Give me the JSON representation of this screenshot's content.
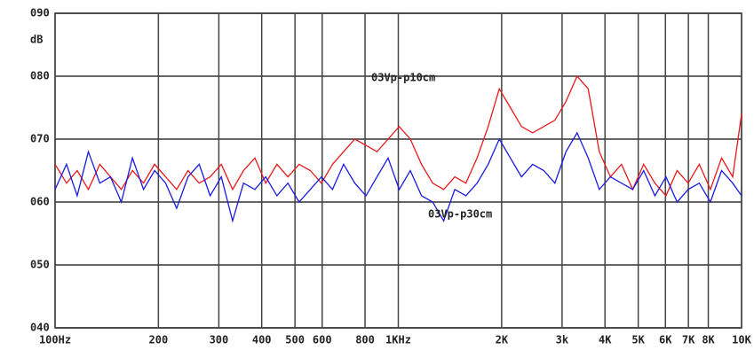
{
  "chart_data": {
    "type": "line",
    "y_label": "dB",
    "xscale": "log",
    "xlim": [
      100,
      10000
    ],
    "ylim": [
      40,
      90
    ],
    "grid": true,
    "xticks": [
      {
        "value": 100,
        "label": "100Hz"
      },
      200,
      300,
      400,
      500,
      600,
      800,
      {
        "value": 1000,
        "label": "1KHz"
      },
      {
        "value": 2000,
        "label": "2K"
      },
      {
        "value": 3000,
        "label": "3k"
      },
      {
        "value": 4000,
        "label": "4K"
      },
      {
        "value": 5000,
        "label": "5K"
      },
      {
        "value": 6000,
        "label": "6K"
      },
      {
        "value": 7000,
        "label": "7K"
      },
      {
        "value": 8000,
        "label": "8K"
      },
      {
        "value": 10000,
        "label": "10K"
      }
    ],
    "yticks": [
      {
        "value": 40,
        "label": "040"
      },
      {
        "value": 50,
        "label": "050"
      },
      {
        "value": 60,
        "label": "060"
      },
      {
        "value": 70,
        "label": "070"
      },
      {
        "value": 80,
        "label": "080"
      },
      {
        "value": 90,
        "label": "090"
      }
    ],
    "x": [
      100,
      108,
      116,
      125,
      135,
      145,
      156,
      168,
      181,
      195,
      210,
      226,
      244,
      263,
      283,
      305,
      329,
      354,
      382,
      411,
      443,
      477,
      514,
      554,
      597,
      643,
      693,
      747,
      805,
      867,
      934,
      1006,
      1084,
      1168,
      1259,
      1356,
      1461,
      1574,
      1696,
      1827,
      1969,
      2121,
      2285,
      2462,
      2653,
      2858,
      3079,
      3317,
      3574,
      3851,
      4149,
      4470,
      4816,
      5188,
      5590,
      6023,
      6489,
      6991,
      7532,
      8115,
      8743,
      9420,
      10000
    ],
    "series": [
      {
        "name": "03Vp-p10cm",
        "color": "#e8191b",
        "values": [
          66,
          63,
          65,
          62,
          66,
          64,
          62,
          65,
          63,
          66,
          64,
          62,
          65,
          63,
          64,
          66,
          62,
          65,
          67,
          63,
          66,
          64,
          66,
          65,
          63,
          66,
          68,
          70,
          69,
          68,
          70,
          72,
          70,
          66,
          63,
          62,
          64,
          63,
          67,
          72,
          78,
          75,
          72,
          71,
          72,
          73,
          76,
          80,
          78,
          68,
          64,
          66,
          62,
          66,
          63,
          61,
          65,
          63,
          66,
          62,
          67,
          64,
          74
        ]
      },
      {
        "name": "03Vp-p30cm",
        "color": "#1a1ae0",
        "values": [
          62,
          66,
          61,
          68,
          63,
          64,
          60,
          67,
          62,
          65,
          63,
          59,
          64,
          66,
          61,
          64,
          57,
          63,
          62,
          64,
          61,
          63,
          60,
          62,
          64,
          62,
          66,
          63,
          61,
          64,
          67,
          62,
          65,
          61,
          60,
          57,
          62,
          61,
          63,
          66,
          70,
          67,
          64,
          66,
          65,
          63,
          68,
          71,
          67,
          62,
          64,
          63,
          62,
          65,
          61,
          64,
          60,
          62,
          63,
          60,
          65,
          63,
          61
        ]
      }
    ]
  }
}
